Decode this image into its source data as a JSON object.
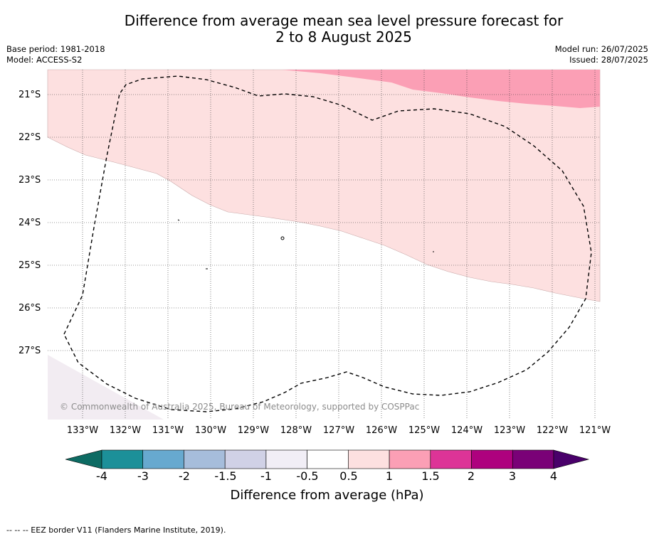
{
  "title": {
    "line1": "Difference from average mean sea level pressure forecast for",
    "line2": "2 to 8 August 2025"
  },
  "meta_left": {
    "base_period": "Base period: 1981-2018",
    "model": "Model: ACCESS-S2"
  },
  "meta_right": {
    "model_run": "Model run: 26/07/2025",
    "issued": "Issued: 28/07/2025"
  },
  "map": {
    "lat_labels": [
      "21°S",
      "22°S",
      "23°S",
      "24°S",
      "25°S",
      "26°S",
      "27°S"
    ],
    "lon_labels": [
      "133°W",
      "132°W",
      "131°W",
      "130°W",
      "129°W",
      "128°W",
      "127°W",
      "126°W",
      "125°W",
      "124°W",
      "123°W",
      "122°W",
      "121°W"
    ],
    "copyright": "© Commonwealth of Australia 2025, Bureau of Meteorology, supported by COSPPac",
    "fill_colors": {
      "band_0.5_1": "#fde0e0",
      "band_1_1.5": "#fb9fb5",
      "band_neg1_neg0.5": "#f2ecf2"
    }
  },
  "colorbar": {
    "ticks": [
      "-4",
      "-3",
      "-2",
      "-1.5",
      "-1",
      "-0.5",
      "0.5",
      "1",
      "1.5",
      "2",
      "3",
      "4"
    ],
    "colors": [
      "#0d6b63",
      "#1c9099",
      "#67a9cf",
      "#a6bddb",
      "#d0d1e6",
      "#f1eef6",
      "#ffffff",
      "#fde0e0",
      "#fb9fb5",
      "#dd3497",
      "#ae017e",
      "#7a0177",
      "#49006a"
    ],
    "title": "Difference from average (hPa)"
  },
  "footnote": "--  --  -- EEZ border V11 (Flanders Marine Institute, 2019)."
}
